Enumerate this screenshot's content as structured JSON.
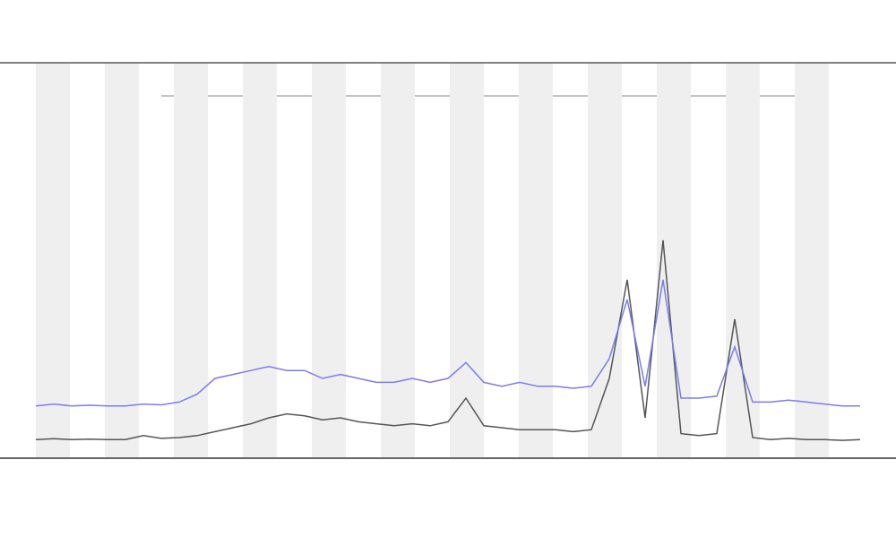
{
  "chart_data": {
    "type": "line",
    "x": [
      0,
      20,
      40,
      60,
      80,
      100,
      120,
      140,
      160,
      180,
      200,
      220,
      240,
      260,
      280,
      300,
      320,
      340,
      360,
      380,
      400,
      420,
      440,
      460,
      480,
      500,
      520,
      540,
      560,
      580,
      600,
      620,
      640,
      660,
      680,
      700,
      720,
      740,
      760,
      780,
      800,
      820,
      840,
      860,
      880,
      900,
      920
    ],
    "series": [
      {
        "color": "#555555",
        "values": [
          4.5,
          4.7,
          4.5,
          4.6,
          4.5,
          4.5,
          5.5,
          4.8,
          5,
          5.5,
          6.5,
          7.5,
          8.5,
          10,
          11,
          10.5,
          9.5,
          10,
          9,
          8.5,
          8,
          8.5,
          8,
          9,
          15,
          8,
          7.5,
          7,
          7,
          7,
          6.5,
          7,
          20,
          45,
          10,
          55,
          6,
          5.5,
          6,
          35,
          5,
          4.5,
          4.8,
          4.5,
          4.5,
          4.3,
          4.5
        ]
      },
      {
        "color": "#7b7bf0",
        "values": [
          13,
          13.5,
          13,
          13.2,
          13,
          13,
          13.5,
          13.3,
          14,
          16,
          20,
          21,
          22,
          23,
          22,
          22,
          20,
          21,
          20,
          19,
          19,
          20,
          19,
          20,
          24,
          19,
          18,
          19,
          18,
          18,
          17.5,
          18,
          25,
          40,
          18,
          45,
          15,
          15,
          15.5,
          28,
          14,
          14,
          14.5,
          14,
          13.5,
          13,
          13
        ]
      }
    ],
    "xlim": [
      0,
      920
    ],
    "ylim": [
      0,
      100
    ]
  }
}
